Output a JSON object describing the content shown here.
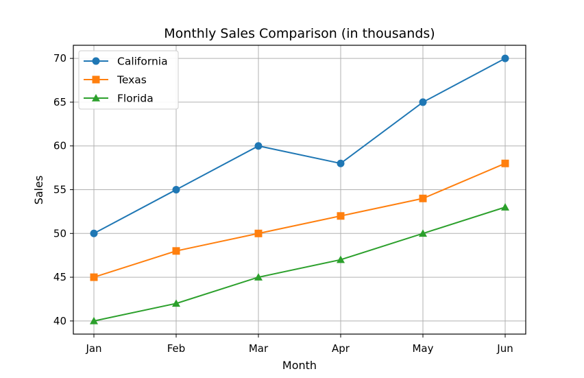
{
  "chart_data": {
    "type": "line",
    "title": "Monthly Sales Comparison (in thousands)",
    "xlabel": "Month",
    "ylabel": "Sales",
    "categories": [
      "Jan",
      "Feb",
      "Mar",
      "Apr",
      "May",
      "Jun"
    ],
    "ylim": [
      38.5,
      71.5
    ],
    "yticks": [
      40,
      45,
      50,
      55,
      60,
      65,
      70
    ],
    "grid": true,
    "legend_position": "top-left",
    "series": [
      {
        "name": "California",
        "values": [
          50,
          55,
          60,
          58,
          65,
          70
        ],
        "color": "#1f77b4",
        "marker": "circle"
      },
      {
        "name": "Texas",
        "values": [
          45,
          48,
          50,
          52,
          54,
          58
        ],
        "color": "#ff7f0e",
        "marker": "square"
      },
      {
        "name": "Florida",
        "values": [
          40,
          42,
          45,
          47,
          50,
          53
        ],
        "color": "#2ca02c",
        "marker": "triangle"
      }
    ]
  }
}
